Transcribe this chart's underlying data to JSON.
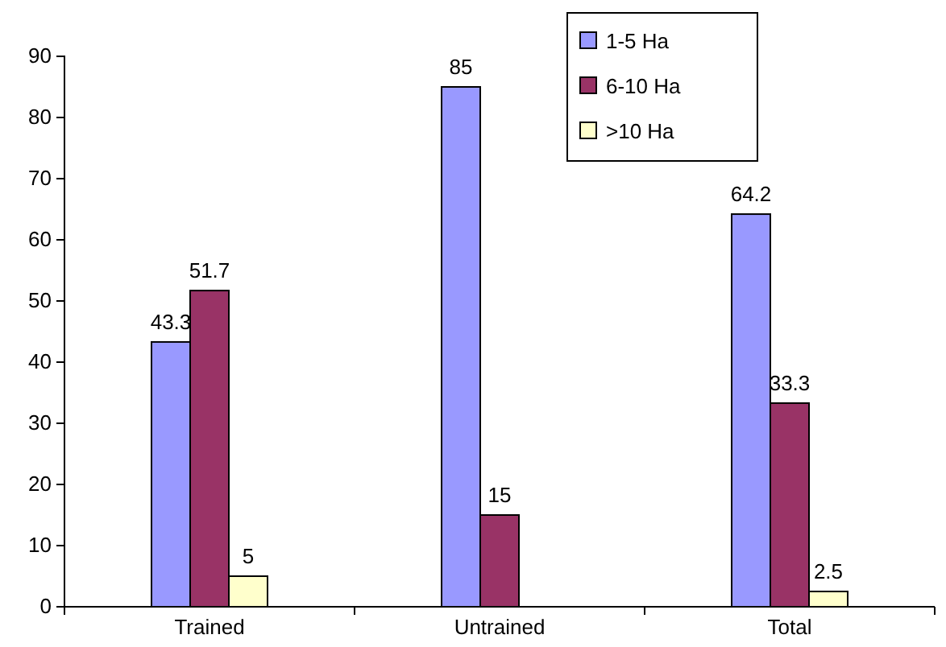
{
  "chart_data": {
    "type": "bar",
    "categories": [
      "Trained",
      "Untrained",
      "Total"
    ],
    "series": [
      {
        "name": "1-5 Ha",
        "color": "#9999ff",
        "values": [
          43.3,
          85,
          64.2
        ]
      },
      {
        "name": "6-10 Ha",
        "color": "#993366",
        "values": [
          51.7,
          15,
          33.3
        ]
      },
      {
        "name": ">10 Ha",
        "color": "#ffffcc",
        "values": [
          5,
          null,
          2.5
        ]
      }
    ],
    "ylim": [
      0,
      90
    ],
    "yticks": [
      0,
      10,
      20,
      30,
      40,
      50,
      60,
      70,
      80,
      90
    ],
    "grid": false,
    "legend": "top right",
    "data_labels": true
  }
}
